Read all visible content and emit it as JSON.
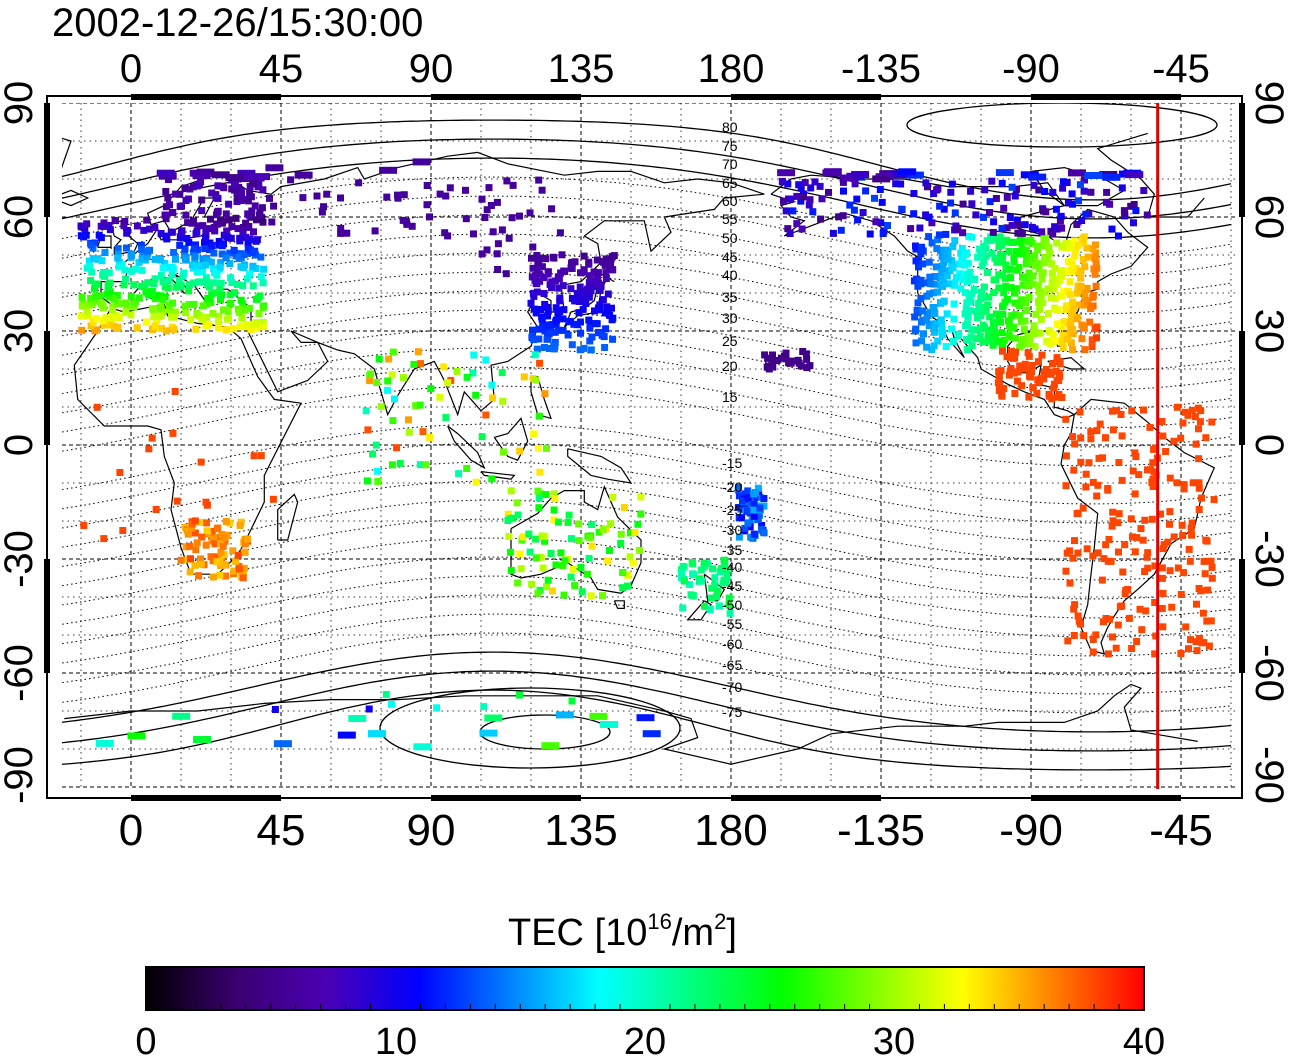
{
  "title": "2002-12-26/15:30:00",
  "map": {
    "lon_ticks_top": [
      "0",
      "45",
      "90",
      "135",
      "180",
      "-135",
      "-90",
      "-45"
    ],
    "lon_ticks_bottom": [
      "0",
      "45",
      "90",
      "135",
      "180",
      "-135",
      "-90",
      "-45"
    ],
    "lat_ticks_left": [
      "90",
      "60",
      "30",
      "0",
      "-30",
      "-60",
      "-90"
    ],
    "lat_ticks_right": [
      "90",
      "60",
      "30",
      "0",
      "-30",
      "-60",
      "-90"
    ],
    "terminator_longitude": -52,
    "terminator_color": "#e00000",
    "contour_labels_north": [
      "80",
      "75",
      "70",
      "65",
      "60",
      "55",
      "50",
      "45",
      "40",
      "35",
      "30",
      "25",
      "20",
      "15"
    ],
    "contour_labels_south": [
      "-15",
      "-20",
      "-25",
      "-30",
      "-35",
      "-40",
      "-45",
      "-50",
      "-55",
      "-60",
      "-65",
      "-70",
      "-75"
    ]
  },
  "colorbar": {
    "label_main": "TEC  [10",
    "label_sup1": "16",
    "label_mid": "/m",
    "label_sup2": "2",
    "label_end": "]",
    "ticks": [
      "0",
      "10",
      "20",
      "30",
      "40"
    ],
    "stops": [
      "#000000",
      "#3a0070",
      "#4a00b4",
      "#0000ff",
      "#0080ff",
      "#00ffff",
      "#00ff80",
      "#00ff00",
      "#80ff00",
      "#ffff00",
      "#ff8000",
      "#ff0000"
    ]
  }
}
